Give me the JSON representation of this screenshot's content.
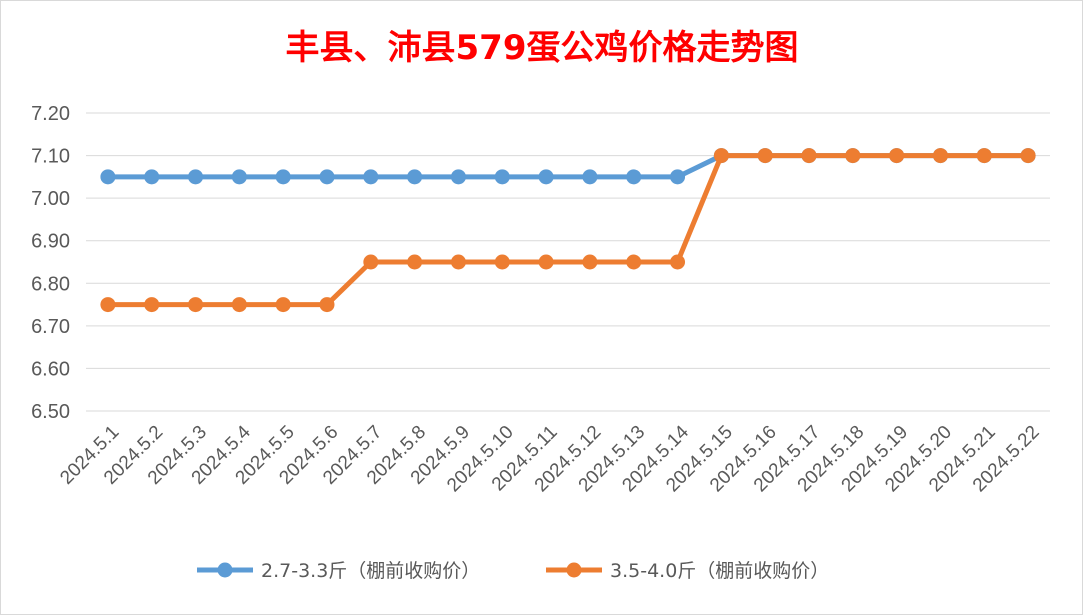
{
  "chart_data": {
    "type": "line",
    "title": "丰县、沛县579蛋公鸡价格走势图",
    "xlabel": "",
    "ylabel": "",
    "categories": [
      "2024.5.1",
      "2024.5.2",
      "2024.5.3",
      "2024.5.4",
      "2024.5.5",
      "2024.5.6",
      "2024.5.7",
      "2024.5.8",
      "2024.5.9",
      "2024.5.10",
      "2024.5.11",
      "2024.5.12",
      "2024.5.13",
      "2024.5.14",
      "2024.5.15",
      "2024.5.16",
      "2024.5.17",
      "2024.5.18",
      "2024.5.19",
      "2024.5.20",
      "2024.5.21",
      "2024.5.22"
    ],
    "ylim": [
      6.5,
      7.2
    ],
    "yticks": [
      "6.50",
      "6.60",
      "6.70",
      "6.80",
      "6.90",
      "7.00",
      "7.10",
      "7.20"
    ],
    "grid": true,
    "legend_position": "bottom",
    "series": [
      {
        "name": "2.7-3.3斤（棚前收购价）",
        "color": "#5b9bd5",
        "values": [
          7.05,
          7.05,
          7.05,
          7.05,
          7.05,
          7.05,
          7.05,
          7.05,
          7.05,
          7.05,
          7.05,
          7.05,
          7.05,
          7.05,
          7.1,
          7.1,
          7.1,
          7.1,
          7.1,
          7.1,
          7.1,
          7.1
        ]
      },
      {
        "name": "3.5-4.0斤（棚前收购价）",
        "color": "#ed7d31",
        "values": [
          6.75,
          6.75,
          6.75,
          6.75,
          6.75,
          6.75,
          6.85,
          6.85,
          6.85,
          6.85,
          6.85,
          6.85,
          6.85,
          6.85,
          7.1,
          7.1,
          7.1,
          7.1,
          7.1,
          7.1,
          7.1,
          7.1
        ]
      }
    ]
  }
}
